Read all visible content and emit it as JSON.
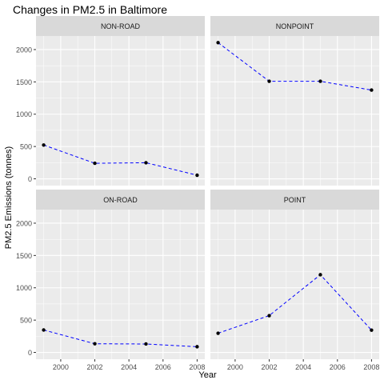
{
  "chart_data": {
    "type": "line",
    "title": "Changes in PM2.5 in Baltimore",
    "xlabel": "Year",
    "ylabel": "PM2.5 Emissions (tonnes)",
    "x": [
      1999,
      2002,
      2005,
      2008
    ],
    "x_ticks": [
      2000,
      2002,
      2004,
      2006,
      2008
    ],
    "y_ticks": [
      0,
      500,
      1000,
      1500,
      2000
    ],
    "xlim": [
      1998.55,
      2008.45
    ],
    "ylim": [
      -105,
      2210
    ],
    "layout": "facet-grid-2x2",
    "line_style": "dashed",
    "grid": true,
    "colors": {
      "line": "#0000ff",
      "point": "#000000",
      "panel_bg": "#ebebeb",
      "strip_bg": "#d9d9d9",
      "grid": "#ffffff"
    },
    "facets": [
      {
        "name": "NON-ROAD",
        "values": [
          522.9,
          240.8,
          248.9,
          55.8
        ]
      },
      {
        "name": "NONPOINT",
        "values": [
          2107.6,
          1509.5,
          1509.5,
          1373.2
        ]
      },
      {
        "name": "ON-ROAD",
        "values": [
          346.8,
          134.3,
          130.4,
          88.3
        ]
      },
      {
        "name": "POINT",
        "values": [
          296.8,
          569.3,
          1202.5,
          344.98
        ]
      }
    ]
  }
}
